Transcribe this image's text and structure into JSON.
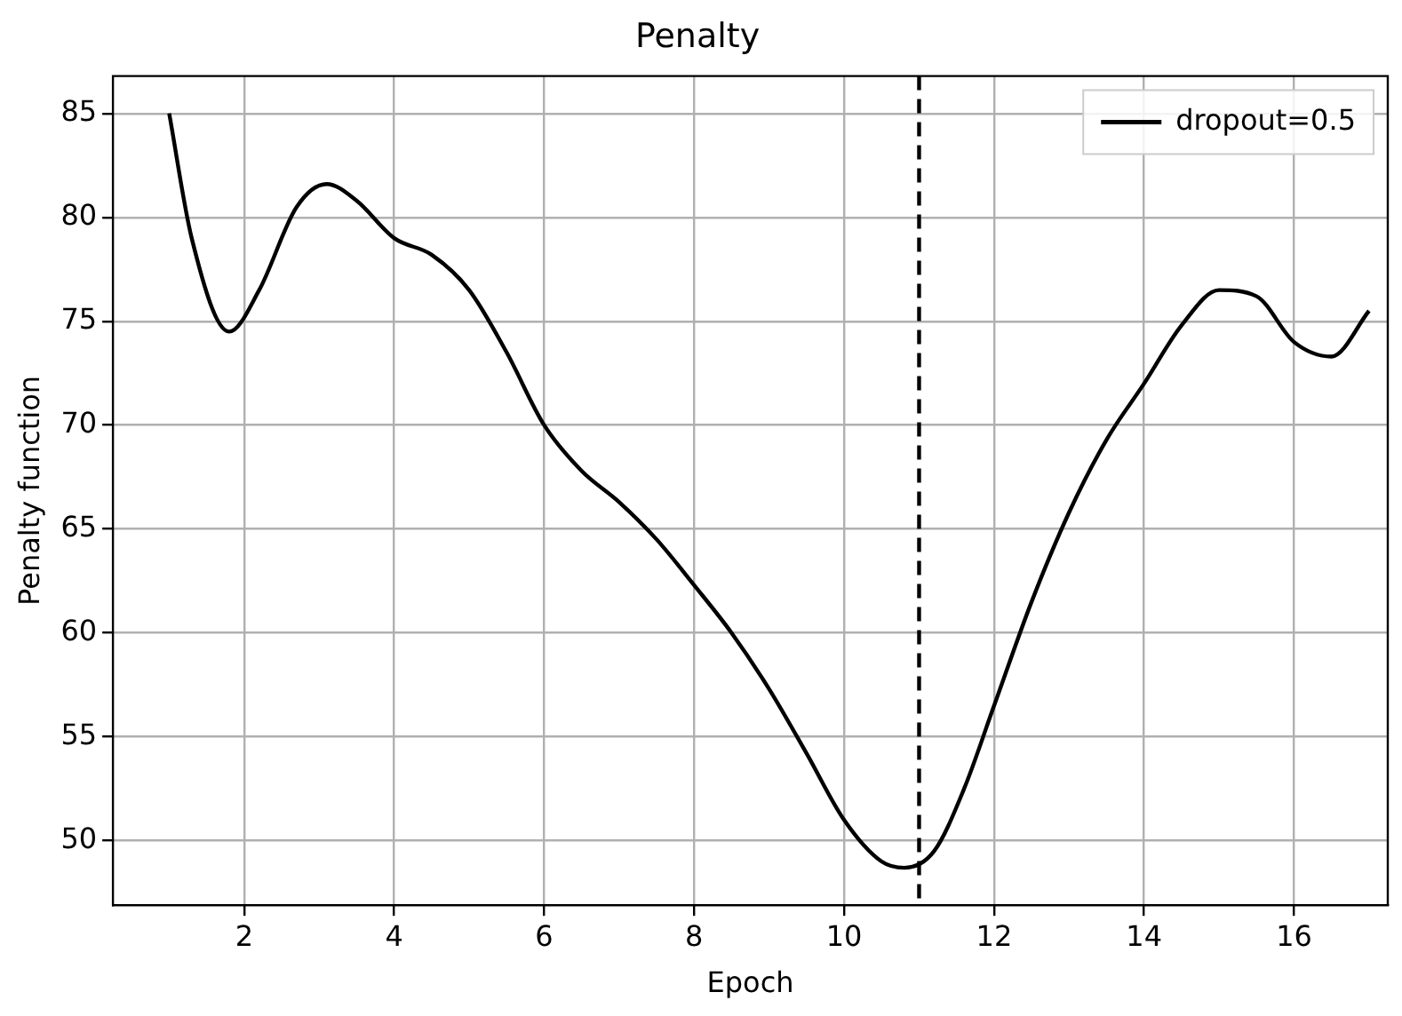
{
  "chart_data": {
    "type": "line",
    "title": "Penalty",
    "xlabel": "Epoch",
    "ylabel": "Penalty function",
    "x": [
      1,
      1.3,
      1.8,
      2.2,
      2.7,
      3.1,
      3.5,
      4,
      4.5,
      5,
      5.5,
      6,
      6.5,
      7,
      7.5,
      8,
      8.5,
      9,
      9.5,
      10,
      10.5,
      10.8,
      11.2,
      11.6,
      12,
      12.5,
      13,
      13.5,
      14,
      14.5,
      15,
      15.5,
      16,
      16.5,
      17
    ],
    "series": [
      {
        "name": "dropout=0.5",
        "color": "#000000",
        "values": [
          85,
          79,
          74.5,
          76.5,
          80.5,
          81.6,
          80.8,
          79,
          78.2,
          76.5,
          73.5,
          70,
          67.8,
          66.3,
          64.5,
          62.3,
          60,
          57.3,
          54.2,
          51,
          49,
          48.7,
          49.5,
          52.5,
          56.5,
          61.5,
          65.8,
          69.3,
          72,
          74.8,
          76.5,
          76.2,
          74,
          73.3,
          75.5
        ]
      }
    ],
    "xlim": [
      0.25,
      17.25
    ],
    "xticks": [
      2,
      4,
      6,
      8,
      10,
      12,
      14,
      16
    ],
    "ylim": [
      46.9,
      86.8
    ],
    "yticks": [
      50,
      55,
      60,
      65,
      70,
      75,
      80,
      85
    ],
    "ref_lines": [
      {
        "axis": "x",
        "value": 11,
        "color": "#000000",
        "line_style": "dashed"
      }
    ],
    "grid": true,
    "legend": "top right",
    "marker": "none",
    "line_style": "solid"
  }
}
